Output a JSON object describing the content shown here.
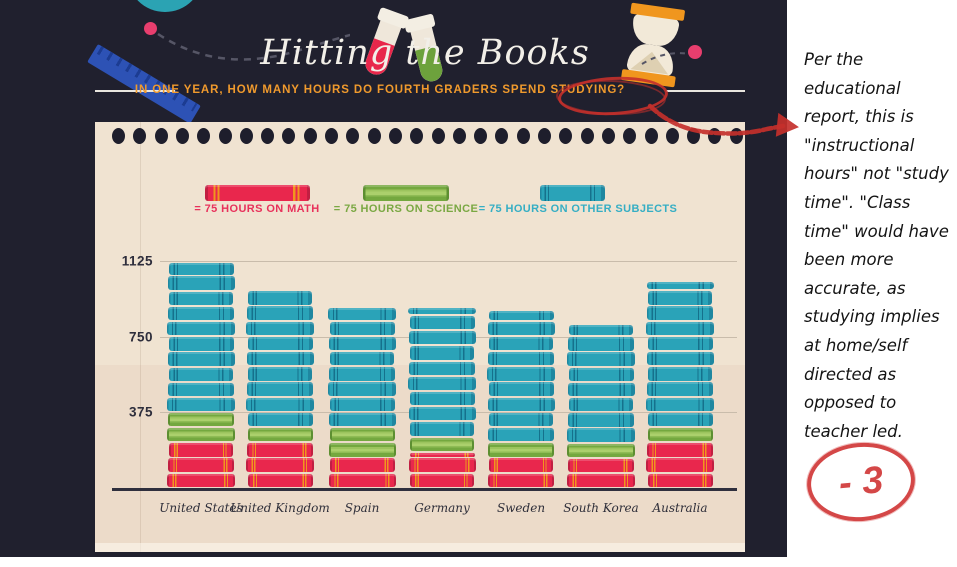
{
  "header": {
    "title": "Hitting the Books",
    "subtitle": "IN ONE YEAR, HOW MANY HOURS DO FOURTH GRADERS SPEND STUDYING?"
  },
  "legend": [
    {
      "label": "= 75 HOURS ON MATH",
      "series": "math",
      "book_color": "#e9274d",
      "text_color": "#e8315b"
    },
    {
      "label": "= 75 HOURS ON SCIENCE",
      "series": "science",
      "book_color": "#74a83f",
      "text_color": "#7aa843"
    },
    {
      "label": "= 75 HOURS ON OTHER SUBJECTS",
      "series": "other",
      "book_color": "#2aa3b8",
      "text_color": "#35aec4"
    }
  ],
  "chart_data": {
    "type": "bar",
    "stacked": true,
    "note": "1 book = 75 hours",
    "unit_hours_per_book": 75,
    "categories": [
      "United States",
      "United Kingdom",
      "Spain",
      "Germany",
      "Sweden",
      "South Korea",
      "Australia"
    ],
    "series": [
      {
        "name": "75 Hours on Math",
        "key": "math",
        "color": "#e9274d",
        "values": [
          220,
          220,
          160,
          170,
          145,
          140,
          235
        ]
      },
      {
        "name": "75 Hours on Science",
        "key": "science",
        "color": "#74a83f",
        "values": [
          140,
          70,
          150,
          70,
          70,
          70,
          70
        ]
      },
      {
        "name": "75 Hours on Other Subjects",
        "key": "other",
        "color": "#2aa3b8",
        "values": [
          735,
          685,
          585,
          635,
          645,
          580,
          715
        ]
      }
    ],
    "totals": [
      1095,
      975,
      895,
      875,
      860,
      790,
      1020
    ],
    "yticks": [
      375,
      750,
      1125
    ],
    "ylim": [
      0,
      1160
    ],
    "grid": true,
    "legend_position": "top"
  },
  "annotations": {
    "note": "Per the educational report, this is \"instructional hours\" not \"study time\". \"Class time\" would have been more accurate, as studying implies at home/self directed as opposed to teacher led.",
    "grade": "- 3",
    "circled_word": "STUDYING?",
    "mark_color": "#c4302b"
  },
  "decorations": [
    "globe-icon",
    "ruler-icon",
    "test-tube-pink-icon",
    "test-tube-green-icon",
    "hourglass-icon",
    "dot-decoration",
    "dashed-line-decoration",
    "binder-holes"
  ]
}
